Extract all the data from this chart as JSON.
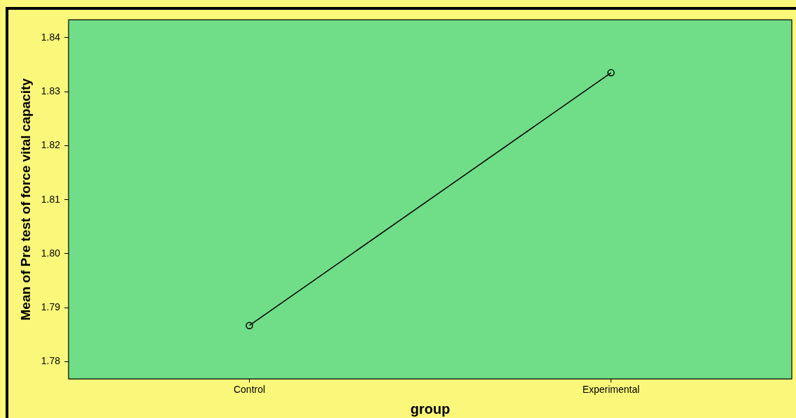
{
  "chart_data": {
    "type": "line",
    "xlabel": "group",
    "ylabel": "Mean of Pre test of force vital capacity",
    "categories": [
      "Control",
      "Experimental"
    ],
    "series": [
      {
        "color": "#000000",
        "values": [
          1.7867,
          1.8335
        ]
      }
    ],
    "ylim": [
      1.7768,
      1.8433
    ],
    "yticks": [
      1.78,
      1.79,
      {
        "value": 1.8,
        "label": "1.80"
      },
      1.81,
      1.82,
      1.83,
      1.84
    ],
    "grid": false,
    "legend": false,
    "marker": "circle",
    "line_style": "solid"
  }
}
